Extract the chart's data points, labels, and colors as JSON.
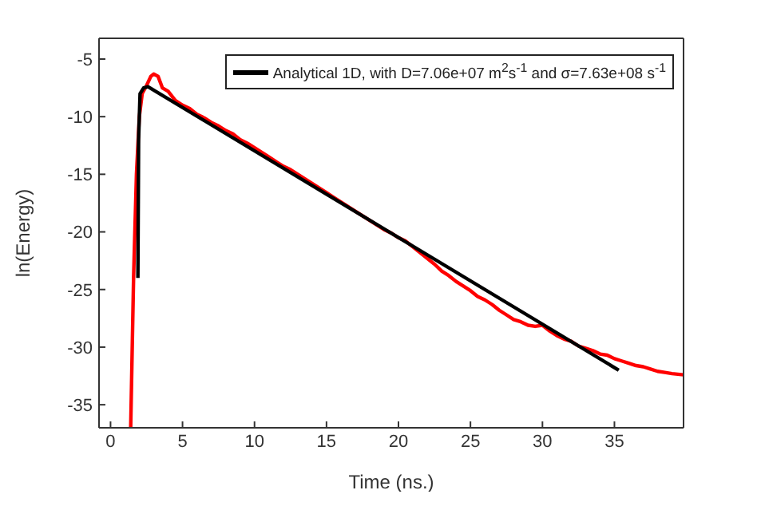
{
  "chart_data": {
    "type": "line",
    "xlabel": "Time (ns.)",
    "ylabel": "ln(Energy)",
    "xlim": [
      -0.8,
      39.8
    ],
    "ylim": [
      -37,
      -3.2
    ],
    "xticks": [
      0,
      5,
      10,
      15,
      20,
      25,
      30,
      35
    ],
    "yticks": [
      -35,
      -30,
      -25,
      -20,
      -15,
      -10,
      -5
    ],
    "grid": false,
    "legend": "top right",
    "marker": "none",
    "line_style": "solid",
    "series": [
      {
        "color": "#ff0000",
        "x": [
          1.4,
          1.6,
          1.8,
          2.0,
          2.2,
          2.5,
          2.8,
          3.0,
          3.3,
          3.6,
          4.0,
          4.5,
          5,
          5.5,
          6,
          6.5,
          7,
          7.5,
          8,
          8.5,
          9,
          9.5,
          10,
          10.5,
          11,
          11.5,
          12,
          12.5,
          13,
          13.5,
          14,
          14.5,
          15,
          15.5,
          16,
          16.5,
          17,
          17.5,
          18,
          18.5,
          19,
          19.5,
          20,
          20.5,
          21,
          21.5,
          22,
          22.5,
          23,
          23.5,
          24,
          24.5,
          25,
          25.5,
          26,
          26.5,
          27,
          27.5,
          28,
          28.5,
          29,
          29.5,
          30,
          30.5,
          31,
          31.5,
          32,
          32.5,
          33,
          33.5,
          34,
          34.5,
          35,
          35.5,
          36,
          36.5,
          37,
          37.5,
          38,
          38.5,
          39,
          39.8
        ],
        "values": [
          -37,
          -24,
          -15,
          -10,
          -8,
          -7.3,
          -6.5,
          -6.3,
          -6.5,
          -7.5,
          -7.8,
          -8.6,
          -9.0,
          -9.3,
          -9.8,
          -10.1,
          -10.5,
          -10.8,
          -11.2,
          -11.5,
          -12.0,
          -12.3,
          -12.7,
          -13.1,
          -13.5,
          -13.9,
          -14.3,
          -14.6,
          -15.0,
          -15.4,
          -15.8,
          -16.2,
          -16.6,
          -17.0,
          -17.4,
          -17.8,
          -18.2,
          -18.6,
          -19.0,
          -19.4,
          -19.8,
          -20.1,
          -20.5,
          -20.8,
          -21.3,
          -21.8,
          -22.3,
          -22.8,
          -23.4,
          -23.8,
          -24.3,
          -24.7,
          -25.1,
          -25.6,
          -25.9,
          -26.3,
          -26.8,
          -27.2,
          -27.6,
          -27.8,
          -28.1,
          -28.2,
          -28.1,
          -28.6,
          -29.0,
          -29.3,
          -29.5,
          -29.9,
          -30.1,
          -30.3,
          -30.6,
          -30.7,
          -31.0,
          -31.2,
          -31.4,
          -31.6,
          -31.7,
          -31.9,
          -32.1,
          -32.2,
          -32.3,
          -32.4
        ]
      },
      {
        "name": "Analytical 1D, with D=7.06e+07 m$^{2}$s$^{-1}$ and σ=7.63e+08 s$^{-1}$",
        "color": "#000000",
        "x": [
          1.9,
          1.95,
          2.05,
          2.3,
          2.6,
          35.3
        ],
        "values": [
          -24,
          -12,
          -8,
          -7.5,
          -7.4,
          -32
        ]
      }
    ]
  }
}
